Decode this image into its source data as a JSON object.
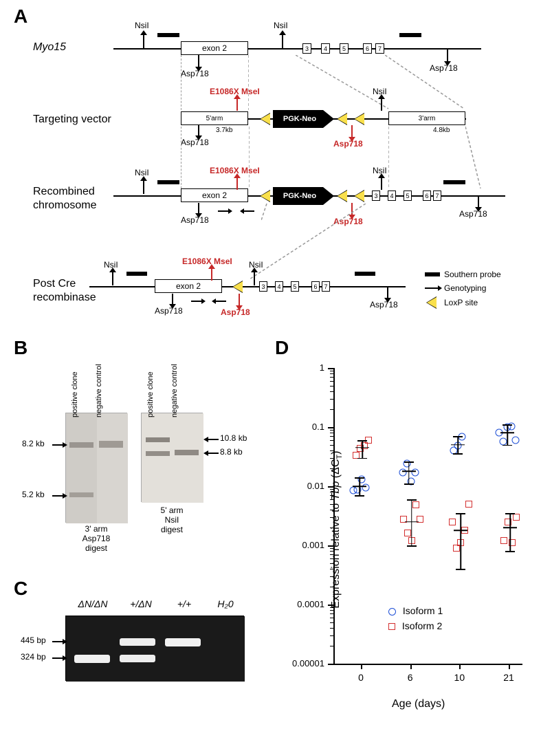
{
  "panelA": {
    "label": "A",
    "rows": {
      "myo15": "Myo15",
      "targeting": "Targeting vector",
      "recombined_l1": "Recombined",
      "recombined_l2": "chromosome",
      "postcre_l1": "Post Cre",
      "postcre_l2": "recombinase"
    },
    "exon2": "exon 2",
    "exons_small": [
      "3",
      "4",
      "5",
      "6",
      "7"
    ],
    "arm5": "5'arm",
    "arm5_size": "3.7kb",
    "arm3": "3'arm",
    "arm3_size": "4.8kb",
    "pgkneo": "PGK-Neo",
    "sites": {
      "nsil": "NsiI",
      "asp718": "Asp718",
      "e1086x": "E1086X MseI",
      "asp718_red": "Asp718"
    },
    "legend": {
      "probe": "Southern probe",
      "genotyping": "Genotyping",
      "loxp": "LoxP site"
    }
  },
  "panelB": {
    "label": "B",
    "lanes": {
      "pos": "positive clone",
      "neg": "negative control"
    },
    "left_bands": {
      "top": "8.2 kb",
      "bottom": "5.2 kb"
    },
    "right_bands": {
      "top": "10.8 kb",
      "bottom": "8.8 kb"
    },
    "left_caption_l1": "3' arm",
    "left_caption_l2": "Asp718",
    "left_caption_l3": "digest",
    "right_caption_l1": "5' arm",
    "right_caption_l2": "NsiI",
    "right_caption_l3": "digest"
  },
  "panelC": {
    "label": "C",
    "lanes": [
      "ΔN/ΔN",
      "+/ΔN",
      "+/+",
      "H₂0"
    ],
    "bands": {
      "top": "445 bp",
      "bottom": "324 bp"
    }
  },
  "panelD": {
    "label": "D",
    "ytitle": "Expression relative to Tbp (ΔCᴛ)",
    "xtitle": "Age (days)",
    "yticks": [
      "1",
      "0.1",
      "0.01",
      "0.001",
      "0.0001",
      "0.00001"
    ],
    "xticks": [
      "0",
      "6",
      "10",
      "21"
    ],
    "legend": {
      "iso1": "Isoform 1",
      "iso2": "Isoform 2"
    },
    "colors": {
      "iso1": "#1e4fd6",
      "iso2": "#d32f2f",
      "axis": "#000000",
      "bg": "#ffffff"
    },
    "scale": "log",
    "iso1_points": {
      "0": [
        0.0085,
        0.0088,
        0.013,
        0.0095
      ],
      "6": [
        0.017,
        0.024,
        0.012,
        0.017
      ],
      "10": [
        0.04,
        0.048,
        0.068
      ],
      "21": [
        0.08,
        0.057,
        0.1,
        0.104,
        0.06
      ]
    },
    "iso2_points": {
      "0": [
        0.033,
        0.044,
        0.048,
        0.06
      ],
      "6": [
        0.0028,
        0.0016,
        0.0012,
        0.0048,
        0.0028
      ],
      "10": [
        0.0025,
        0.0009,
        0.0011,
        0.0018,
        0.005
      ],
      "21": [
        0.0012,
        0.0025,
        0.0011,
        0.003
      ]
    },
    "iso1_mean": {
      "0": 0.01,
      "6": 0.018,
      "10": 0.05,
      "21": 0.08
    },
    "iso1_err": {
      "0": [
        0.007,
        0.014
      ],
      "6": [
        0.011,
        0.026
      ],
      "10": [
        0.036,
        0.07
      ],
      "21": [
        0.05,
        0.11
      ]
    },
    "iso2_mean": {
      "0": 0.045,
      "6": 0.0025,
      "10": 0.0018,
      "21": 0.002
    },
    "iso2_err": {
      "0": [
        0.03,
        0.06
      ],
      "6": [
        0.001,
        0.006
      ],
      "10": [
        0.0004,
        0.0035
      ],
      "21": [
        0.0008,
        0.0035
      ]
    }
  }
}
